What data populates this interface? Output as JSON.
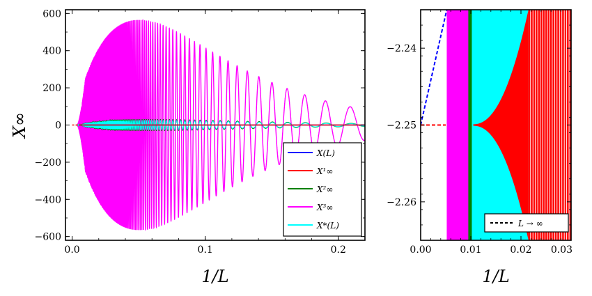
{
  "chart_data": [
    {
      "type": "line",
      "panel": "left",
      "xlabel": "1/L",
      "ylabel": "X∞",
      "xlim": [
        -0.005,
        0.22
      ],
      "ylim": [
        -620,
        620
      ],
      "xticks": [
        0.0,
        0.1,
        0.2
      ],
      "xtick_labels": [
        "0.0",
        "0.1",
        "0.2"
      ],
      "yticks": [
        600,
        400,
        200,
        0,
        -200,
        -400,
        -600
      ],
      "ytick_labels": [
        "600",
        "400",
        "200",
        "0",
        "−200",
        "−400",
        "−600"
      ],
      "series": [
        {
          "name": "X(L)",
          "legend": "X(L)",
          "color": "#0000ff",
          "points": [
            [
              0.0,
              -2.25
            ],
            [
              0.22,
              0.0
            ]
          ]
        },
        {
          "name": "X1∞",
          "legend": "X¹∞",
          "color": "#ff0000",
          "points": [
            [
              0.0,
              -2.25
            ],
            [
              0.22,
              0.0
            ]
          ]
        },
        {
          "name": "X2∞",
          "legend": "X²∞",
          "color": "#008000",
          "envelope_peak": 30,
          "oscillatory": true
        },
        {
          "name": "X3∞",
          "legend": "X³∞",
          "color": "#ff00ff",
          "envelope_peak": 565,
          "envelope_peak_x": 0.05,
          "oscillatory": true
        },
        {
          "name": "X*(L)",
          "legend": "X*(L)",
          "color": "#00ffff",
          "envelope_peak": 25,
          "oscillatory": true
        }
      ],
      "extrapolation": {
        "name": "L → ∞",
        "color": "#ff0000",
        "points": [
          [
            0.0,
            -2.25
          ],
          [
            0.005,
            -2.25
          ]
        ]
      },
      "legend_position": "lower-right"
    },
    {
      "type": "line",
      "panel": "right",
      "xlabel": "1/L",
      "ylabel": "",
      "xlim": [
        0.0,
        0.03
      ],
      "ylim": [
        -2.265,
        -2.235
      ],
      "xticks": [
        0.0,
        0.01,
        0.02,
        0.03
      ],
      "xtick_labels": [
        "0.00",
        "0.01",
        "0.02",
        "0.03"
      ],
      "yticks": [
        -2.24,
        -2.25,
        -2.26
      ],
      "ytick_labels": [
        "−2.24",
        "−2.25",
        "−2.26"
      ],
      "series": [
        {
          "name": "X(L) extrapolation",
          "color": "#0000ff",
          "style": "dashed",
          "points": [
            [
              0.0,
              -2.25
            ],
            [
              0.0052,
              -2.235
            ]
          ]
        },
        {
          "name": "X1∞ extrapolation",
          "color": "#ff0000",
          "style": "dashed",
          "points": [
            [
              0.0,
              -2.25
            ],
            [
              0.005,
              -2.25
            ]
          ]
        },
        {
          "name": "X3∞ band",
          "color": "#ff00ff",
          "x_range": [
            0.0052,
            0.0098
          ]
        },
        {
          "name": "X2∞ edge",
          "color": "#008000",
          "x_range": [
            0.0095,
            0.0102
          ]
        },
        {
          "name": "X*(L) band",
          "color": "#00ffff",
          "x_range": [
            0.0098,
            0.0215
          ]
        },
        {
          "name": "X1∞ band",
          "color": "#ff0000",
          "x_range": [
            0.0105,
            0.03
          ]
        }
      ],
      "legend": [
        {
          "label": "L → ∞",
          "style": "dashed",
          "color": "#000000"
        }
      ],
      "legend_position": "lower-right"
    }
  ]
}
